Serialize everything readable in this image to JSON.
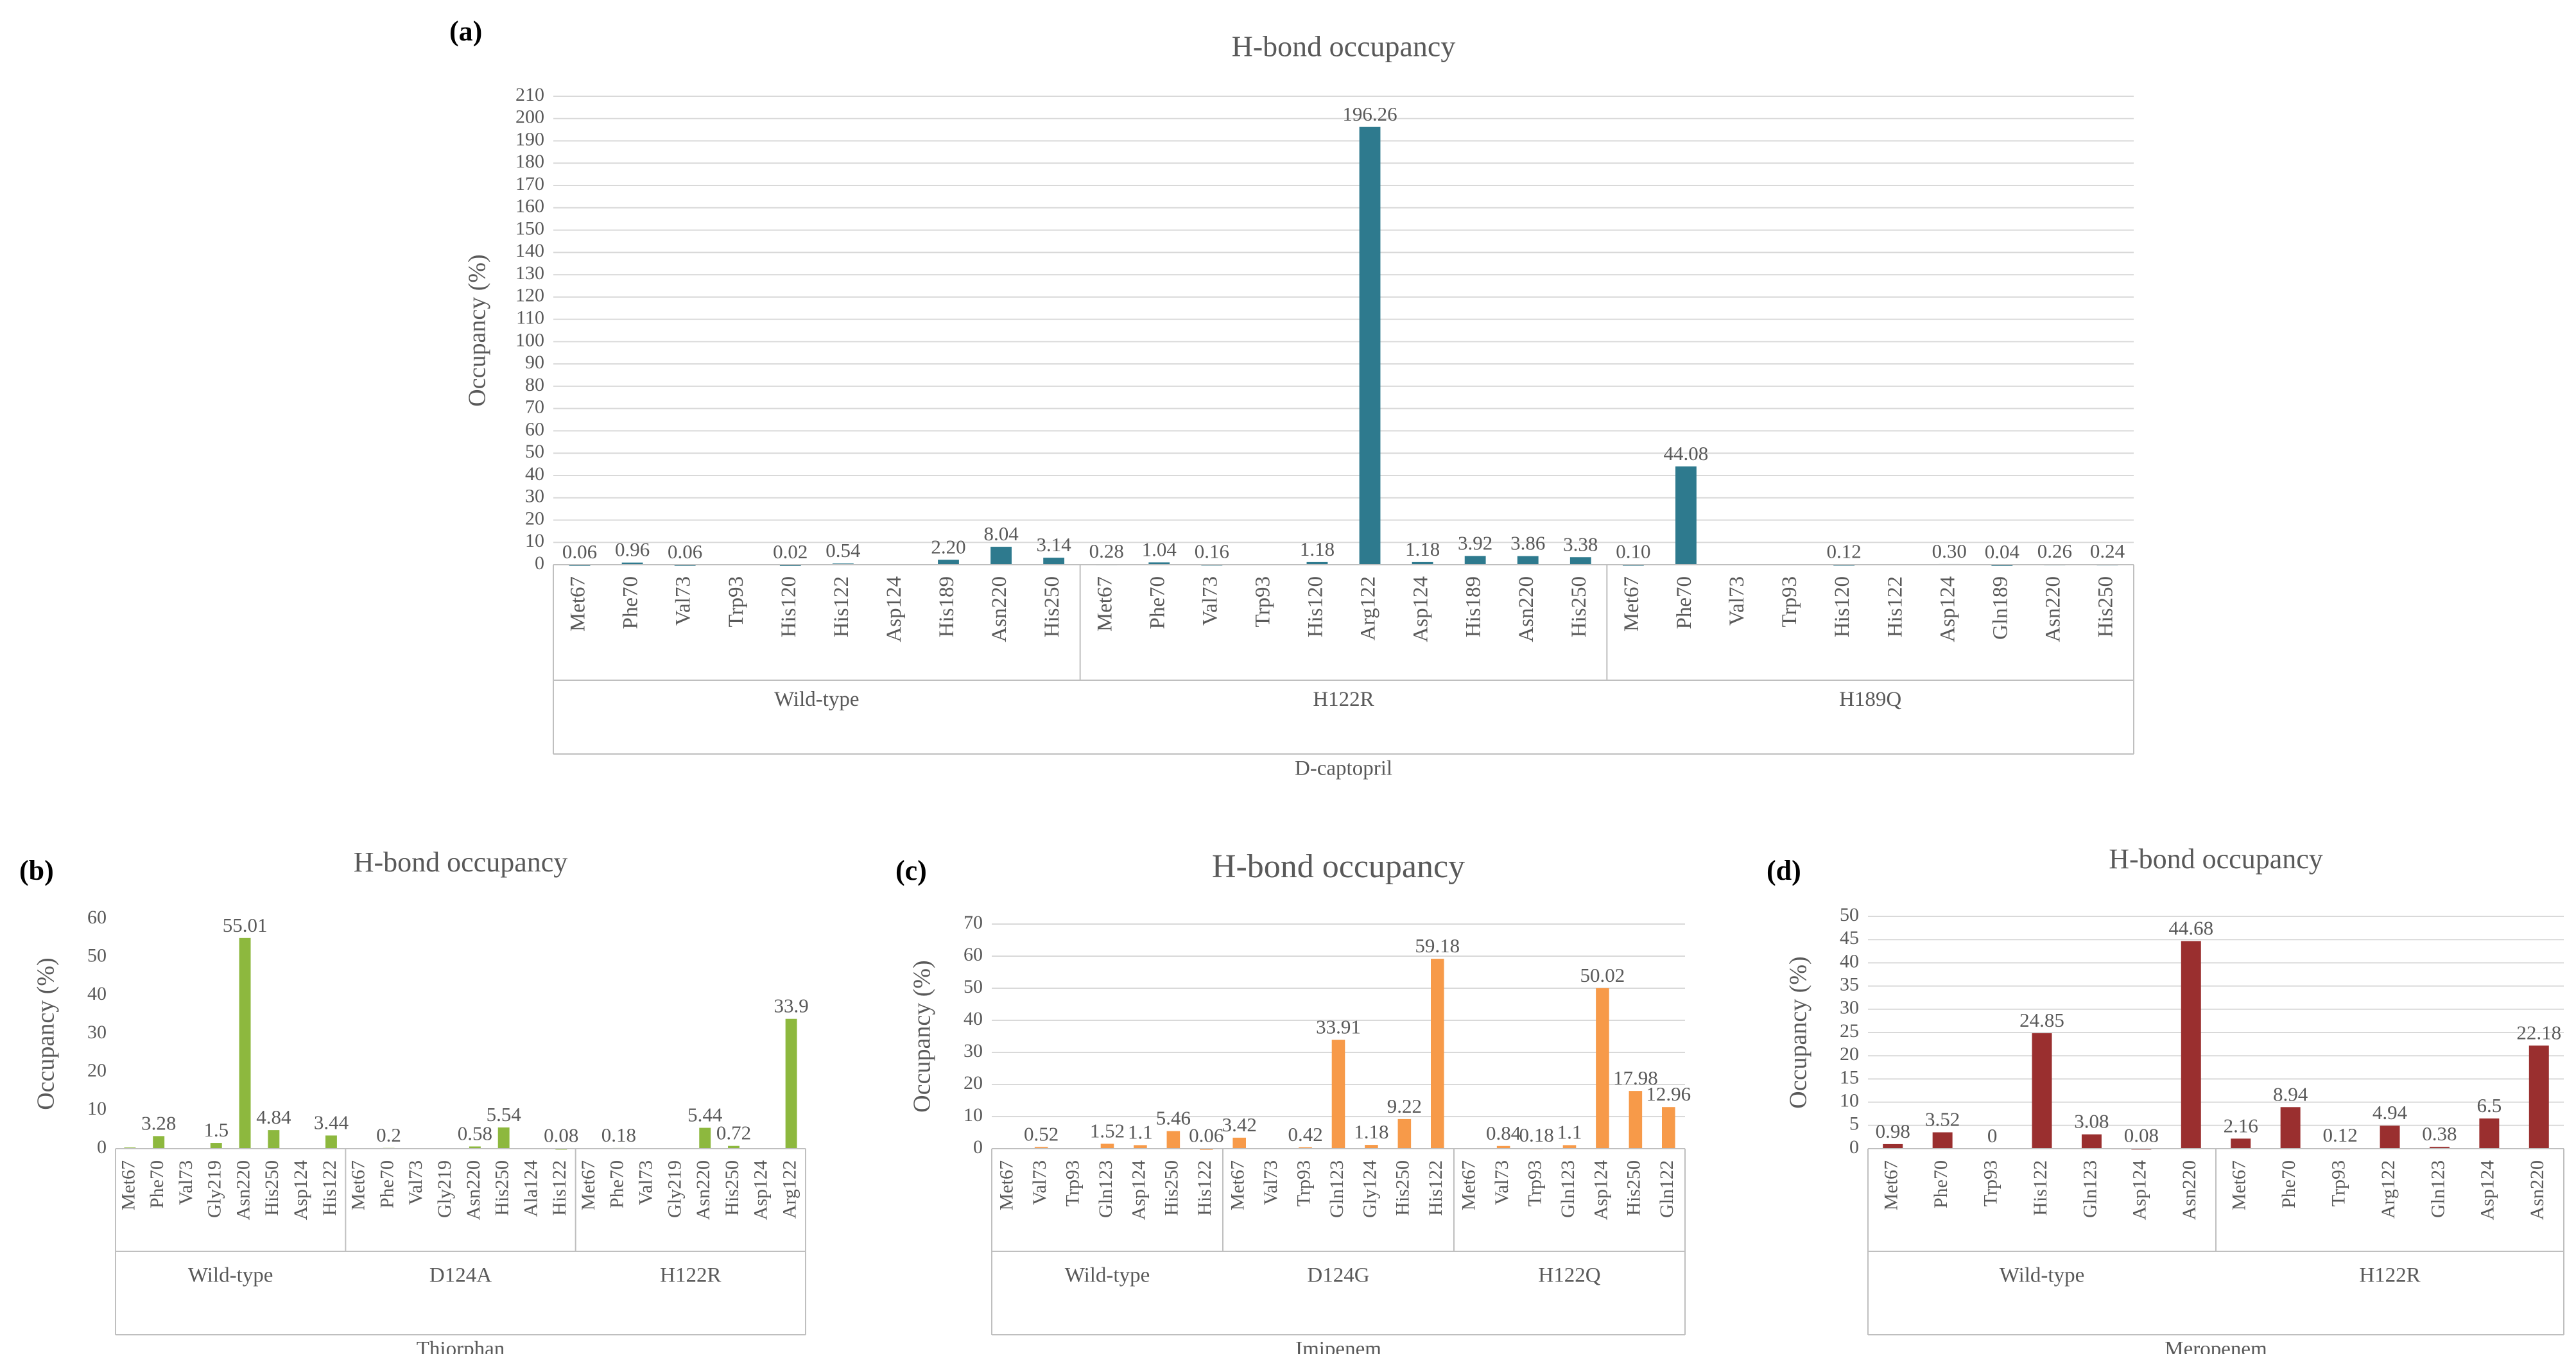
{
  "chart_data": [
    {
      "id": "a",
      "type": "bar",
      "panel_label": "(a)",
      "title": "H-bond occupancy",
      "ylabel": "Occupancy (%)",
      "ylim": [
        0,
        210
      ],
      "ystep": 10,
      "color": "#2e7a8e",
      "grid": true,
      "drug": "D-captopril",
      "groups": [
        {
          "name": "Wild-type",
          "categories": [
            "Met67",
            "Phe70",
            "Val73",
            "Trp93",
            "His120",
            "His122",
            "Asp124",
            "His189",
            "Asn220",
            "His250"
          ],
          "values": [
            0.06,
            0.96,
            0.06,
            0,
            0.02,
            0.54,
            0,
            2.2,
            8.04,
            3.14
          ],
          "labels": [
            "0.06",
            "0.96",
            "0.06",
            "",
            "0.02",
            "0.54",
            "",
            "2.20",
            "8.04",
            "3.14"
          ]
        },
        {
          "name": "H122R",
          "categories": [
            "Met67",
            "Phe70",
            "Val73",
            "Trp93",
            "His120",
            "Arg122",
            "Asp124",
            "His189",
            "Asn220",
            "His250"
          ],
          "values": [
            0.28,
            1.04,
            0.16,
            0,
            1.18,
            196.26,
            1.18,
            3.92,
            3.86,
            3.38
          ],
          "labels": [
            "0.28",
            "1.04",
            "0.16",
            "",
            "1.18",
            "196.26",
            "1.18",
            "3.92",
            "3.86",
            "3.38"
          ]
        },
        {
          "name": "H189Q",
          "categories": [
            "Met67",
            "Phe70",
            "Val73",
            "Trp93",
            "His120",
            "His122",
            "Asp124",
            "Gln189",
            "Asn220",
            "His250"
          ],
          "values": [
            0.1,
            44.08,
            0,
            0,
            0.12,
            0,
            0.3,
            0.04,
            0.26,
            0.24
          ],
          "labels": [
            "0.10",
            "44.08",
            "",
            "",
            "0.12",
            "",
            "0.30",
            "0.04",
            "0.26",
            "0.24"
          ]
        }
      ]
    },
    {
      "id": "b",
      "type": "bar",
      "panel_label": "(b)",
      "title": "H-bond occupancy",
      "ylabel": "Occupancy (%)",
      "ylim": [
        0,
        60
      ],
      "ystep": 10,
      "color": "#8db83e",
      "grid": false,
      "drug": "Thiorphan",
      "groups": [
        {
          "name": "Wild-type",
          "categories": [
            "Met67",
            "Phe70",
            "Val73",
            "Gly219",
            "Asn220",
            "His250",
            "Asp124",
            "His122"
          ],
          "values": [
            0.3,
            3.28,
            0,
            1.5,
            55.01,
            4.84,
            0,
            3.44
          ],
          "labels": [
            "",
            "3.28",
            "",
            "1.5",
            "55.01",
            "4.84",
            "",
            "3.44"
          ]
        },
        {
          "name": "D124A",
          "categories": [
            "Met67",
            "Phe70",
            "Val73",
            "Gly219",
            "Asn220",
            "His250",
            "Ala124",
            "His122"
          ],
          "values": [
            0,
            0.2,
            0,
            0,
            0.58,
            5.54,
            0,
            0.08
          ],
          "labels": [
            "",
            "0.2",
            "",
            "",
            "0.58",
            "5.54",
            "",
            "0.08"
          ]
        },
        {
          "name": "H122R",
          "categories": [
            "Met67",
            "Phe70",
            "Val73",
            "Gly219",
            "Asn220",
            "His250",
            "Asp124",
            "Arg122"
          ],
          "values": [
            0,
            0.18,
            0,
            0,
            5.44,
            0.72,
            0,
            33.9
          ],
          "labels": [
            "",
            "0.18",
            "",
            "",
            "5.44",
            "0.72",
            "",
            "33.9"
          ]
        }
      ]
    },
    {
      "id": "c",
      "type": "bar",
      "panel_label": "(c)",
      "title": "H-bond occupancy",
      "ylabel": "Occupancy (%)",
      "ylim": [
        0,
        70
      ],
      "ystep": 10,
      "color": "#f79a49",
      "grid": true,
      "drug": "Imipenem",
      "groups": [
        {
          "name": "Wild-type",
          "categories": [
            "Met67",
            "Val73",
            "Trp93",
            "Gln123",
            "Asp124",
            "His250",
            "His122"
          ],
          "values": [
            0,
            0.52,
            0,
            1.52,
            1.1,
            5.46,
            0.06
          ],
          "labels": [
            "",
            "0.52",
            "",
            "1.52",
            "1.1",
            "5.46",
            "0.06"
          ]
        },
        {
          "name": "D124G",
          "categories": [
            "Met67",
            "Val73",
            "Trp93",
            "Gln123",
            "Gly124",
            "His250",
            "His122"
          ],
          "values": [
            3.42,
            0,
            0.42,
            33.91,
            1.18,
            9.22,
            59.18
          ],
          "labels": [
            "3.42",
            "",
            "0.42",
            "33.91",
            "1.18",
            "9.22",
            "59.18"
          ]
        },
        {
          "name": "H122Q",
          "categories": [
            "Met67",
            "Val73",
            "Trp93",
            "Gln123",
            "Asp124",
            "His250",
            "Gln122"
          ],
          "values": [
            0,
            0.84,
            0.18,
            1.1,
            50.02,
            17.98,
            12.96
          ],
          "labels": [
            "",
            "0.84",
            "0.18",
            "1.1",
            "50.02",
            "17.98",
            "12.96"
          ]
        }
      ]
    },
    {
      "id": "d",
      "type": "bar",
      "panel_label": "(d)",
      "title": "H-bond occupancy",
      "ylabel": "Occupancy (%)",
      "ylim": [
        0,
        50
      ],
      "ystep": 5,
      "color": "#9a2f2f",
      "grid": true,
      "drug": "Meropenem",
      "groups": [
        {
          "name": "Wild-type",
          "categories": [
            "Met67",
            "Phe70",
            "Trp93",
            "His122",
            "Gln123",
            "Asp124",
            "Asn220"
          ],
          "values": [
            0.98,
            3.52,
            0,
            24.85,
            3.08,
            0.08,
            44.68
          ],
          "labels": [
            "0.98",
            "3.52",
            "0",
            "24.85",
            "3.08",
            "0.08",
            "44.68"
          ]
        },
        {
          "name": "H122R",
          "categories": [
            "Met67",
            "Phe70",
            "Trp93",
            "Arg122",
            "Gln123",
            "Asp124",
            "Asn220"
          ],
          "values": [
            2.16,
            8.94,
            0.12,
            4.94,
            0.38,
            6.5,
            22.18
          ],
          "labels": [
            "2.16",
            "8.94",
            "0.12",
            "4.94",
            "0.38",
            "6.5",
            "22.18"
          ]
        }
      ]
    }
  ]
}
